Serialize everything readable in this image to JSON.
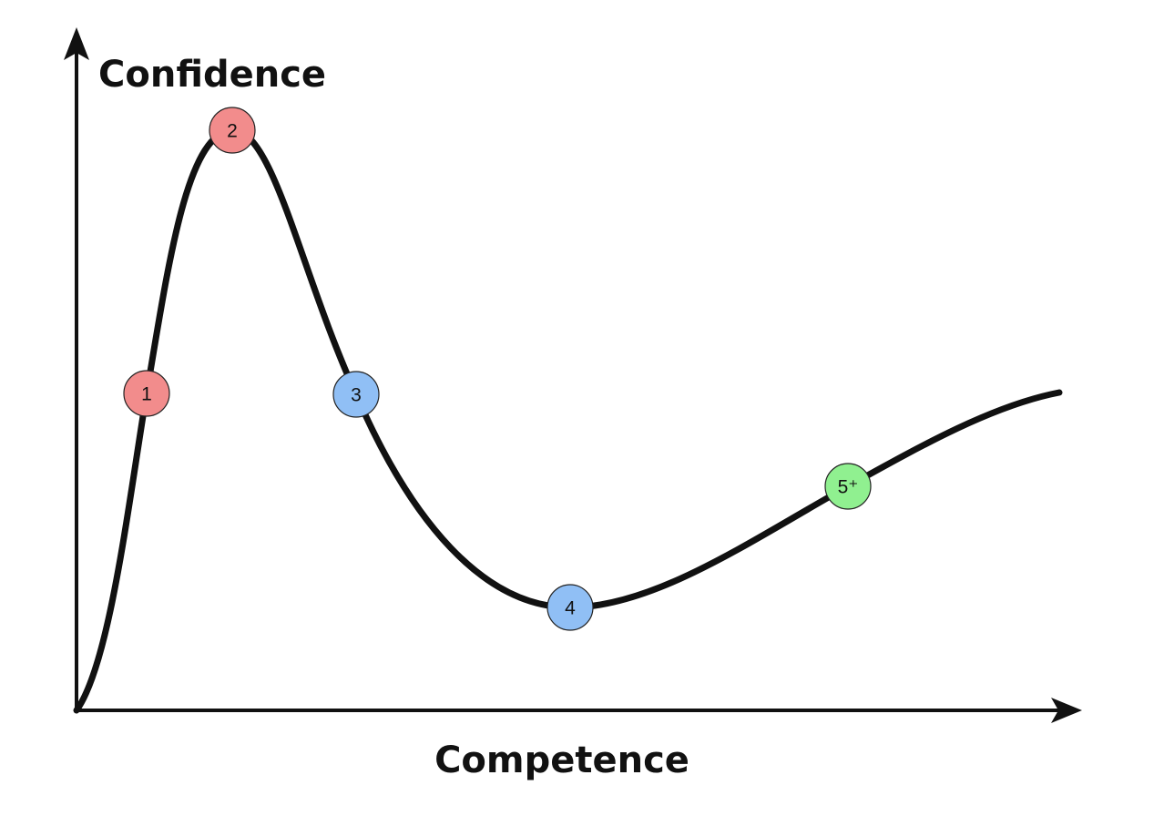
{
  "axes": {
    "y_label": "Confidence",
    "x_label": "Competence"
  },
  "nodes": [
    {
      "label": "1"
    },
    {
      "label": "2"
    },
    {
      "label": "3"
    },
    {
      "label": "4"
    },
    {
      "label": "5⁺"
    }
  ]
}
